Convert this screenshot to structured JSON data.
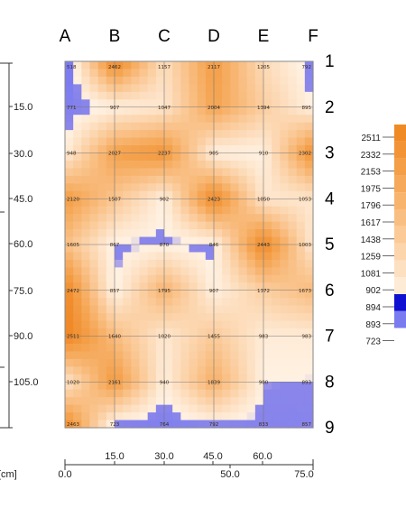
{
  "chart_data": {
    "type": "heatmap",
    "columns": [
      "A",
      "B",
      "C",
      "D",
      "E",
      "F"
    ],
    "rows": [
      "1",
      "2",
      "3",
      "4",
      "5",
      "6",
      "7",
      "8",
      "9"
    ],
    "values": [
      [
        518,
        2462,
        1157,
        2117,
        1205,
        792
      ],
      [
        771,
        907,
        1047,
        2004,
        1394,
        895
      ],
      [
        948,
        2027,
        2237,
        905,
        910,
        2302
      ],
      [
        2120,
        1507,
        902,
        2423,
        1050,
        1053
      ],
      [
        1605,
        867,
        870,
        846,
        2443,
        1003
      ],
      [
        2472,
        857,
        1795,
        907,
        1372,
        1673
      ],
      [
        2511,
        1640,
        1020,
        1455,
        983,
        983
      ],
      [
        1020,
        2161,
        940,
        1839,
        900,
        893
      ],
      [
        2463,
        723,
        764,
        792,
        833,
        857
      ]
    ],
    "x_axis_bottom": {
      "ticks": [
        "0.0",
        "50.0",
        "75.0"
      ],
      "unit": "[cm]"
    },
    "x_axis_top": {
      "ticks": [
        "15.0",
        "30.0",
        "45.0",
        "60.0"
      ]
    },
    "y_axis_left": {
      "ticks": [
        "15.0",
        "30.0",
        "45.0",
        "60.0",
        "75.0",
        "90.0",
        "105.0"
      ]
    },
    "legend": {
      "entries": [
        "2511",
        "2332",
        "2153",
        "1975",
        "1796",
        "1617",
        "1438",
        "1259",
        "1081",
        "902",
        "894",
        "893",
        "723"
      ],
      "colors": [
        "#f08a24",
        "#f29436",
        "#f49e48",
        "#f6a95a",
        "#f8b46d",
        "#f9bf82",
        "#fbca97",
        "#fcd5ac",
        "#fde0c0",
        "#feebd6",
        "#1010d0",
        "#7b7bf0",
        "#ffffff"
      ]
    }
  }
}
